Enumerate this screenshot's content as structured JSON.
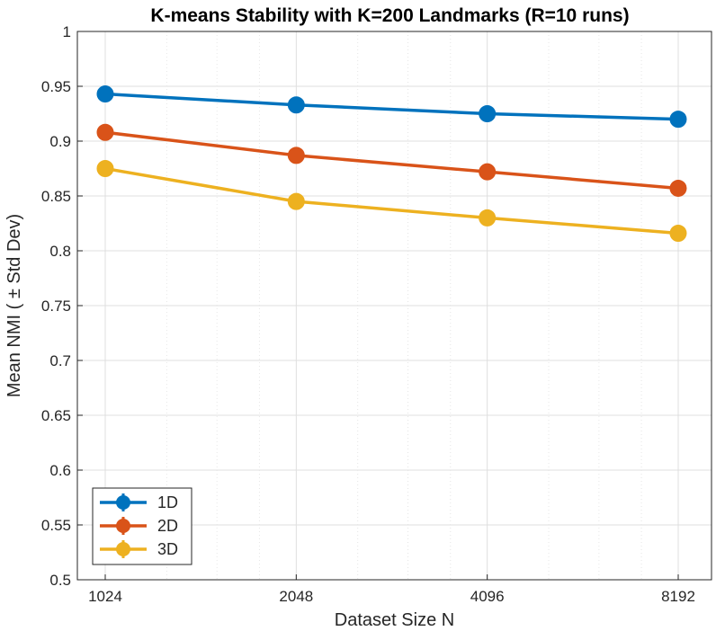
{
  "chart_data": {
    "type": "line",
    "title": "K-means Stability with K=200 Landmarks (R=10 runs)",
    "xlabel": "Dataset Size N",
    "ylabel": "Mean  NMI  ( ±  Std  Dev)",
    "x_scale": "log2",
    "x": [
      1024,
      2048,
      4096,
      8192
    ],
    "x_tick_labels": [
      "1024",
      "2048",
      "4096",
      "8192"
    ],
    "xlim": [
      1024,
      8192
    ],
    "ylim": [
      0.5,
      1
    ],
    "y_ticks": [
      0.5,
      0.55,
      0.6,
      0.65,
      0.7,
      0.75,
      0.8,
      0.85,
      0.9,
      0.95,
      1
    ],
    "y_tick_labels": [
      "0.5",
      "0.55",
      "0.6",
      "0.65",
      "0.7",
      "0.75",
      "0.8",
      "0.85",
      "0.9",
      "0.95",
      "1"
    ],
    "grid": true,
    "error_bars": true,
    "legend_position": "bottom-left",
    "series": [
      {
        "name": "1D",
        "color": "#0072BD",
        "values": [
          0.943,
          0.933,
          0.925,
          0.92
        ],
        "std": [
          0.002,
          0.002,
          0.002,
          0.002
        ]
      },
      {
        "name": "2D",
        "color": "#D95319",
        "values": [
          0.908,
          0.887,
          0.872,
          0.857
        ],
        "std": [
          0.002,
          0.002,
          0.002,
          0.002
        ]
      },
      {
        "name": "3D",
        "color": "#EDB120",
        "values": [
          0.875,
          0.845,
          0.83,
          0.816
        ],
        "std": [
          0.002,
          0.002,
          0.002,
          0.002
        ]
      }
    ]
  }
}
